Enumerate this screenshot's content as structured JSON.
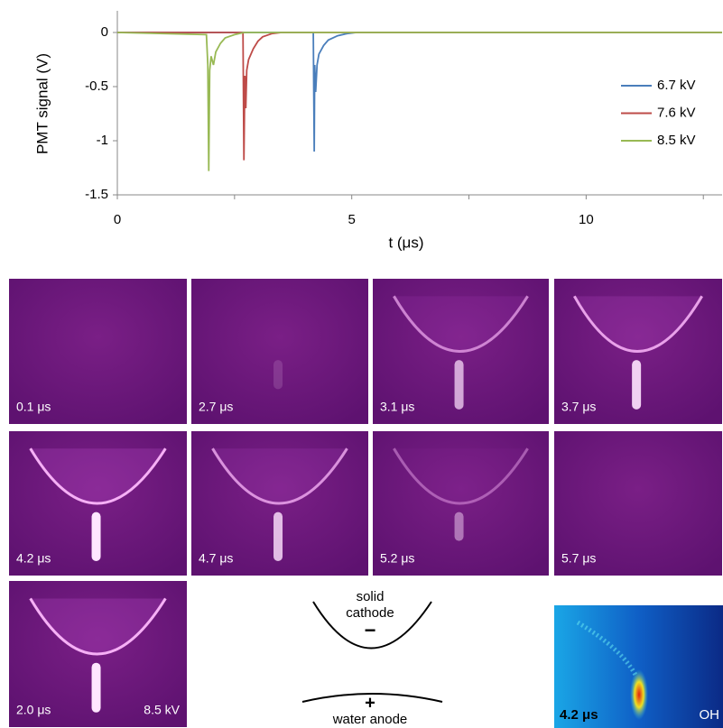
{
  "chart_data": {
    "type": "line",
    "y_label": "PMT signal (V)",
    "x_label": "t (μs)",
    "xlim": [
      0,
      12.9
    ],
    "ylim": [
      -1.5,
      0.2
    ],
    "xticks": [
      0,
      5,
      10
    ],
    "xminor": [
      2.5,
      7.5,
      12.5
    ],
    "yticks": [
      0,
      -0.5,
      -1,
      -1.5
    ],
    "series": [
      {
        "name": "6.7 kV",
        "color": "#4a7ebb",
        "x": [
          0,
          4.18,
          4.2,
          4.21,
          4.23,
          4.26,
          4.3,
          4.4,
          4.5,
          4.7,
          4.9,
          5.1,
          12.9
        ],
        "values": [
          0,
          0,
          -1.1,
          -0.3,
          -0.55,
          -0.3,
          -0.2,
          -0.12,
          -0.07,
          -0.03,
          -0.01,
          0,
          0
        ]
      },
      {
        "name": "7.6 kV",
        "color": "#be4b48",
        "x": [
          0,
          2.68,
          2.7,
          2.72,
          2.74,
          2.76,
          2.8,
          2.9,
          3.0,
          3.1,
          3.3,
          3.5,
          12.9
        ],
        "values": [
          0,
          0,
          -1.18,
          -0.4,
          -0.7,
          -0.35,
          -0.25,
          -0.15,
          -0.08,
          -0.04,
          -0.01,
          0,
          0
        ]
      },
      {
        "name": "8.5 kV",
        "color": "#98b954",
        "x": [
          0,
          1.9,
          1.93,
          1.95,
          1.97,
          2.0,
          2.05,
          2.1,
          2.2,
          2.3,
          2.5,
          2.7,
          12.9
        ],
        "values": [
          0,
          -0.02,
          -0.3,
          -1.28,
          -0.35,
          -0.22,
          -0.3,
          -0.18,
          -0.1,
          -0.05,
          -0.02,
          0,
          0
        ]
      }
    ]
  },
  "figure": {
    "panels": [
      "0.1 μs",
      "2.7 μs",
      "3.1 μs",
      "3.7 μs",
      "4.2 μs",
      "4.7 μs",
      "5.2 μs",
      "5.7 μs",
      "2.0 μs"
    ],
    "panel_voltage": "8.5 kV",
    "cathode_label": [
      "solid",
      "cathode"
    ],
    "cathode_sign": "−",
    "anode_sign": "+",
    "anode_label": "water anode",
    "inset_time": "4.2 μs",
    "inset_species": "OH"
  }
}
